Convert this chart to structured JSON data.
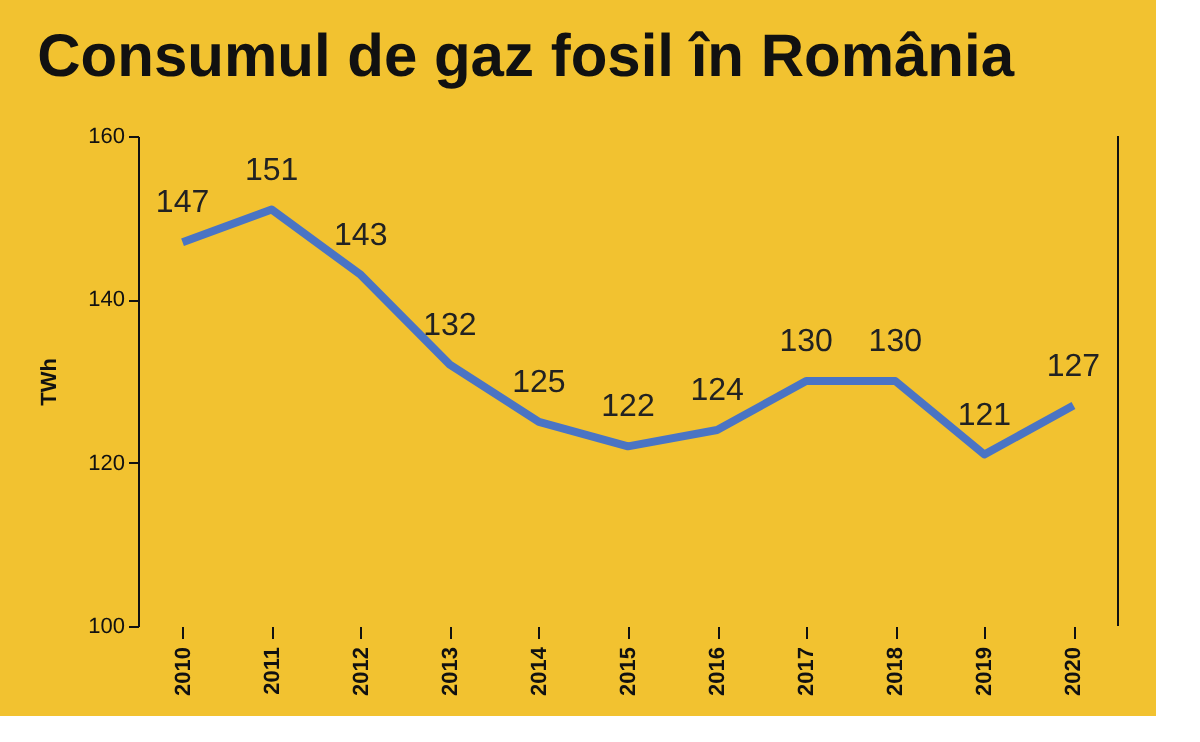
{
  "chart_data": {
    "type": "line",
    "title": "Consumul de gaz fosil în România",
    "ylabel": "TWh",
    "categories": [
      "2010",
      "2011",
      "2012",
      "2013",
      "2014",
      "2015",
      "2016",
      "2017",
      "2018",
      "2019",
      "2020"
    ],
    "series": [
      {
        "color": "#4a74c4",
        "values": [
          147,
          151,
          143,
          132,
          125,
          122,
          124,
          130,
          130,
          121,
          127
        ]
      }
    ],
    "ylim": [
      100,
      160
    ],
    "yticks": [
      100,
      120,
      140,
      160
    ],
    "grid": false,
    "legend": false,
    "data_labels": true,
    "marker": "none",
    "line_style": "solid"
  }
}
